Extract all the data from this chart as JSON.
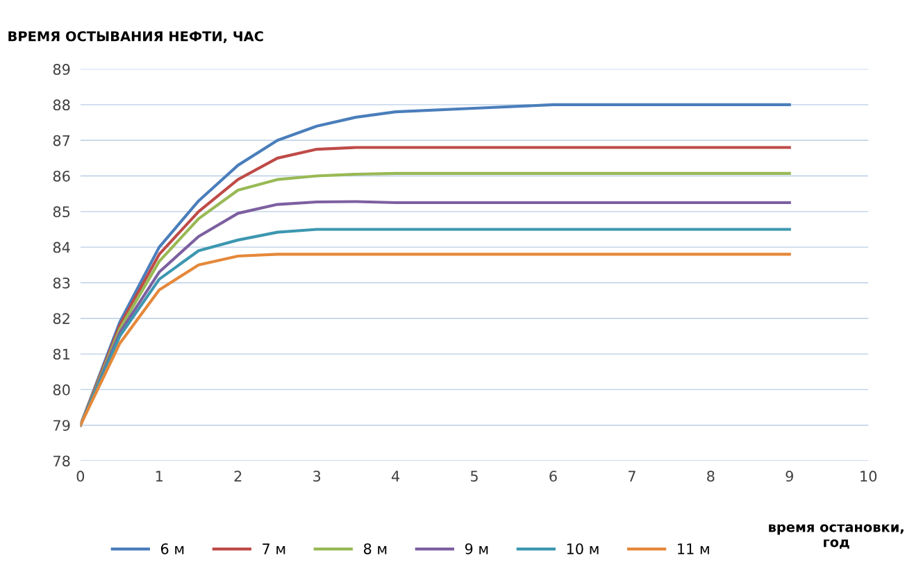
{
  "chart_data": {
    "type": "line",
    "ylabel": "ВРЕМЯ ОСТЫВАНИЯ НЕФТИ, ЧАС",
    "xlabel": "время остановки,\nгод",
    "x": [
      0,
      0.5,
      1,
      1.5,
      2,
      2.5,
      3,
      3.5,
      4,
      5,
      6,
      7,
      8,
      9
    ],
    "series": [
      {
        "name": "6 м",
        "color": "#4a7ebb",
        "values": [
          79,
          81.9,
          84.0,
          85.3,
          86.3,
          87.0,
          87.4,
          87.65,
          87.8,
          87.9,
          88.0,
          88.0,
          88.0,
          88.0
        ]
      },
      {
        "name": "7 м",
        "color": "#be4b48",
        "values": [
          79,
          81.8,
          83.8,
          85.0,
          85.9,
          86.5,
          86.75,
          86.8,
          86.8,
          86.8,
          86.8,
          86.8,
          86.8,
          86.8
        ]
      },
      {
        "name": "8 м",
        "color": "#98b954",
        "values": [
          79,
          81.7,
          83.6,
          84.8,
          85.6,
          85.9,
          86.0,
          86.05,
          86.07,
          86.07,
          86.07,
          86.07,
          86.07,
          86.07
        ]
      },
      {
        "name": "9 м",
        "color": "#7d60a0",
        "values": [
          79,
          81.6,
          83.3,
          84.3,
          84.95,
          85.2,
          85.27,
          85.28,
          85.25,
          85.25,
          85.25,
          85.25,
          85.25,
          85.25
        ]
      },
      {
        "name": "10 м",
        "color": "#3c97b0",
        "values": [
          79,
          81.5,
          83.1,
          83.9,
          84.2,
          84.42,
          84.5,
          84.5,
          84.5,
          84.5,
          84.5,
          84.5,
          84.5,
          84.5
        ]
      },
      {
        "name": "11 м",
        "color": "#e5883a",
        "values": [
          79,
          81.3,
          82.8,
          83.5,
          83.75,
          83.8,
          83.8,
          83.8,
          83.8,
          83.8,
          83.8,
          83.8,
          83.8,
          83.8
        ]
      }
    ],
    "xlim": [
      0,
      10
    ],
    "xticks": [
      0,
      1,
      2,
      3,
      4,
      5,
      6,
      7,
      8,
      9,
      10
    ],
    "ylim": [
      78,
      89
    ],
    "yticks": [
      78,
      79,
      80,
      81,
      82,
      83,
      84,
      85,
      86,
      87,
      88,
      89
    ],
    "grid": "y",
    "legend": "bottom",
    "marker": "none",
    "line_style": "solid"
  }
}
